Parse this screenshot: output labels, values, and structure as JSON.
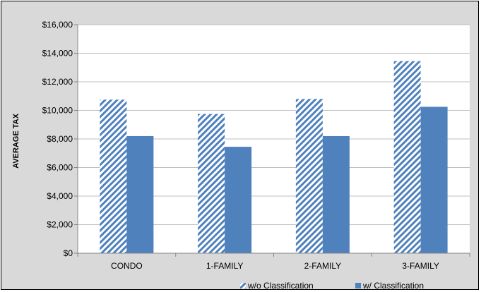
{
  "chart_data": {
    "type": "bar",
    "title": "",
    "xlabel": "",
    "ylabel": "AVERAGE TAX",
    "categories": [
      "CONDO",
      "1-FAMILY",
      "2-FAMILY",
      "3-FAMILY"
    ],
    "series": [
      {
        "name": "w/o Classification",
        "values": [
          10750,
          9750,
          10800,
          13450
        ],
        "color": "#4f81bd",
        "pattern": "diagonal-hatch"
      },
      {
        "name": "w/ Classification",
        "values": [
          8200,
          7450,
          8200,
          10250
        ],
        "color": "#4f81bd",
        "pattern": "solid"
      }
    ],
    "ylim": [
      0,
      16000
    ],
    "yticks": [
      0,
      2000,
      4000,
      6000,
      8000,
      10000,
      12000,
      14000,
      16000
    ],
    "ytick_labels": [
      "$0",
      "$2,000",
      "$4,000",
      "$6,000",
      "$8,000",
      "$10,000",
      "$12,000",
      "$14,000",
      "$16,000"
    ],
    "grid": true,
    "legend_position": "bottom-right",
    "background": "#d9d9d9",
    "plot_background": "#ffffff",
    "gridline_color": "#bfbfbf"
  }
}
